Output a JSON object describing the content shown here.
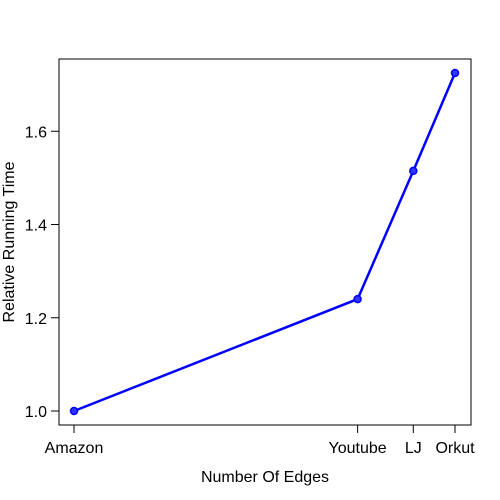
{
  "chart_data": {
    "type": "line",
    "title": "",
    "xlabel": "Number Of Edges",
    "ylabel": "Relative Running Time",
    "categories": [
      "Amazon",
      "Youtube",
      "LJ",
      "Orkut"
    ],
    "x": [
      0.926,
      34.0,
      69.0,
      117.2
    ],
    "x_axis": {
      "scale": "log",
      "unit": "millions of edges"
    },
    "series": [
      {
        "values": [
          1.0,
          1.24,
          1.515,
          1.725
        ],
        "color": "#0000ff"
      }
    ],
    "yticks": [
      "1.0",
      "1.2",
      "1.4",
      "1.6"
    ],
    "ytick_values": [
      1.0,
      1.2,
      1.4,
      1.6
    ],
    "ylim": [
      0.97,
      1.755
    ],
    "grid": false,
    "legend": "none"
  }
}
